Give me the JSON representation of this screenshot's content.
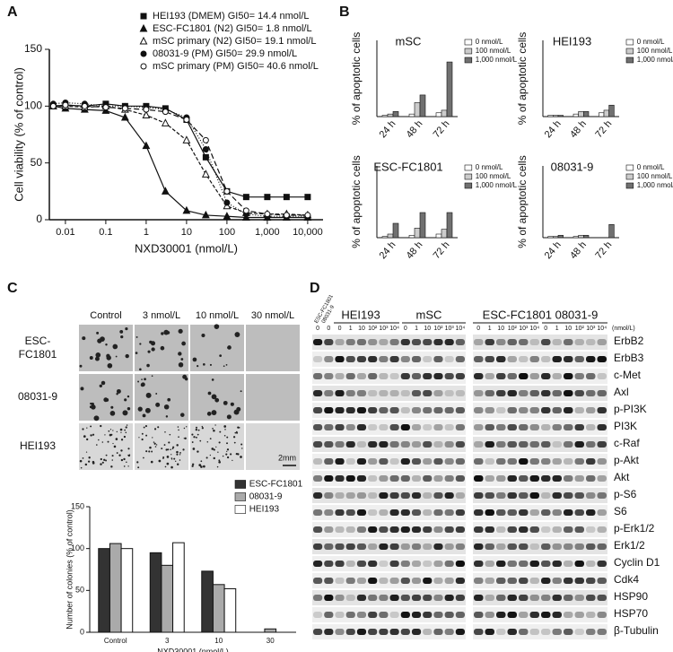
{
  "panel_labels": [
    "A",
    "B",
    "C",
    "D"
  ],
  "chart_data": [
    {
      "type": "line",
      "x_label": "NXD30001 (nmol/L)",
      "y_label": "Cell viability (% of control)",
      "log_x": true,
      "xlim": [
        0.004,
        24000
      ],
      "xticks": [
        0.01,
        0.1,
        1,
        10,
        100,
        {
          "value": 1000,
          "label": "1,000"
        },
        {
          "value": 10000,
          "label": "10,000"
        }
      ],
      "ylim": [
        0,
        150
      ],
      "yticks": [
        0,
        50,
        100,
        150
      ],
      "x": [
        0.005,
        0.01,
        0.03,
        0.1,
        0.3,
        1,
        3,
        10,
        30,
        100,
        300,
        1000,
        3000,
        10000
      ],
      "series": [
        {
          "name": "HEI193 (DMEM) GI50= 14.4 nmol/L",
          "marker": "square",
          "dash": "none",
          "values": [
            100,
            101,
            100,
            102,
            100,
            100,
            98,
            88,
            55,
            25,
            20,
            20,
            20,
            20
          ]
        },
        {
          "name": "ESC-FC1801 (N2)  GI50= 1.8 nmol/L",
          "marker": "triangle",
          "dash": "none",
          "values": [
            100,
            98,
            97,
            96,
            90,
            65,
            25,
            8,
            4,
            3,
            2,
            2,
            2,
            2
          ]
        },
        {
          "name": "mSC primary (N2)  GI50= 19.1 nmol/L",
          "marker": "triangle-open",
          "dash": "4 2",
          "values": [
            100,
            100,
            99,
            100,
            97,
            92,
            85,
            70,
            40,
            12,
            6,
            5,
            5,
            4
          ]
        },
        {
          "name": "08031-9 (PM) GI50= 29.9 nmol/L",
          "marker": "circle",
          "dash": "1 2",
          "values": [
            102,
            103,
            102,
            100,
            100,
            99,
            97,
            90,
            62,
            15,
            5,
            3,
            3,
            3
          ]
        },
        {
          "name": "mSC primary (PM) GI50= 40.6 nmol/L",
          "marker": "circle-open",
          "dash": "6 3",
          "values": [
            100,
            101,
            100,
            99,
            98,
            97,
            95,
            88,
            70,
            25,
            8,
            5,
            4,
            4
          ]
        }
      ]
    },
    {
      "type": "bar",
      "title": "mSC",
      "y_label": "% of apoptotic cells",
      "ylim": [
        0,
        60
      ],
      "categories": [
        "24 h",
        "48 h",
        "72 h"
      ],
      "series": [
        {
          "name": "0 nmol/L",
          "color": "#ffffff",
          "values": [
            1,
            2,
            3
          ]
        },
        {
          "name": "100 nmol/L",
          "color": "#cccccc",
          "values": [
            2,
            11,
            5
          ]
        },
        {
          "name": "1,000 nmol/L",
          "color": "#707070",
          "values": [
            4,
            17,
            43
          ]
        }
      ]
    },
    {
      "type": "bar",
      "title": "HEI193",
      "y_label": "% of apoptotic cells",
      "ylim": [
        0,
        60
      ],
      "categories": [
        "24 h",
        "48 h",
        "72 h"
      ],
      "series": [
        {
          "name": "0 nmol/L",
          "color": "#ffffff",
          "values": [
            1,
            2,
            3
          ]
        },
        {
          "name": "100 nmol/L",
          "color": "#cccccc",
          "values": [
            1,
            4,
            5
          ]
        },
        {
          "name": "1,000 nmol/L",
          "color": "#707070",
          "values": [
            1,
            4,
            9
          ]
        }
      ]
    },
    {
      "type": "bar",
      "title": "ESC-FC1801",
      "y_label": "% of apoptotic cells",
      "ylim": [
        0,
        60
      ],
      "categories": [
        "24 h",
        "48 h",
        "72 h"
      ],
      "series": [
        {
          "name": "0 nmol/L",
          "color": "#ffffff",
          "values": [
            1,
            2,
            3
          ]
        },
        {
          "name": "100 nmol/L",
          "color": "#cccccc",
          "values": [
            3,
            8,
            7
          ]
        },
        {
          "name": "1,000 nmol/L",
          "color": "#707070",
          "values": [
            12,
            21,
            21
          ]
        }
      ]
    },
    {
      "type": "bar",
      "title": "08031-9",
      "y_label": "% of apoptotic cells",
      "ylim": [
        0,
        60
      ],
      "categories": [
        "24 h",
        "48 h",
        "72 h"
      ],
      "series": [
        {
          "name": "0 nmol/L",
          "color": "#ffffff",
          "values": [
            1,
            1,
            0
          ]
        },
        {
          "name": "100 nmol/L",
          "color": "#cccccc",
          "values": [
            1,
            2,
            0
          ]
        },
        {
          "name": "1,000 nmol/L",
          "color": "#707070",
          "values": [
            2,
            2,
            11
          ]
        }
      ]
    },
    {
      "type": "bar",
      "y_label": "Number of colonies (% of control)",
      "x_label": "NXD30001 (nmol/L)",
      "ylim": [
        0,
        150
      ],
      "yticks": [
        0,
        50,
        100,
        150
      ],
      "categories": [
        "Control",
        "3",
        "10",
        "30"
      ],
      "series": [
        {
          "name": "ESC-FC1801",
          "color": "#333333",
          "values": [
            100,
            95,
            73,
            0
          ]
        },
        {
          "name": "08031-9",
          "color": "#aaaaaa",
          "values": [
            106,
            80,
            57,
            4
          ]
        },
        {
          "name": "HEI193",
          "color": "#ffffff",
          "values": [
            100,
            107,
            52,
            0
          ]
        }
      ]
    }
  ],
  "colony_panel": {
    "column_labels": [
      "Control",
      "3 nmol/L",
      "10 nmol/L",
      "30 nmol/L"
    ],
    "row_labels": [
      [
        "ESC-",
        "FC1801"
      ],
      "08031-9",
      "HEI193"
    ],
    "scale_bar": "2mm"
  },
  "western_blot": {
    "control_labels": [
      "ESC-FC1801",
      "08031-9"
    ],
    "left_groups": [
      "HEI193",
      "mSC"
    ],
    "right_group": "ESC-FC1801 08031-9",
    "unit": "(nmol/L)",
    "left_lanes": [
      "0",
      "0",
      "0",
      "1",
      "10",
      "10²",
      "10³",
      "10⁴",
      "0",
      "1",
      "10",
      "10²",
      "10³",
      "10⁴"
    ],
    "right_lanes": [
      "0",
      "1",
      "10",
      "10²",
      "10³",
      "10⁴",
      "0",
      "1",
      "10",
      "10²",
      "10³",
      "10⁴"
    ],
    "proteins": [
      "ErbB2",
      "ErbB3",
      "c-Met",
      "Axl",
      "p-PI3K",
      "PI3K",
      "c-Raf",
      "p-Akt",
      "Akt",
      "p-S6",
      "S6",
      "p-Erk1/2",
      "Erk1/2",
      "Cyclin D1",
      "Cdk4",
      "HSP90",
      "HSP70",
      "β-Tubulin"
    ]
  }
}
